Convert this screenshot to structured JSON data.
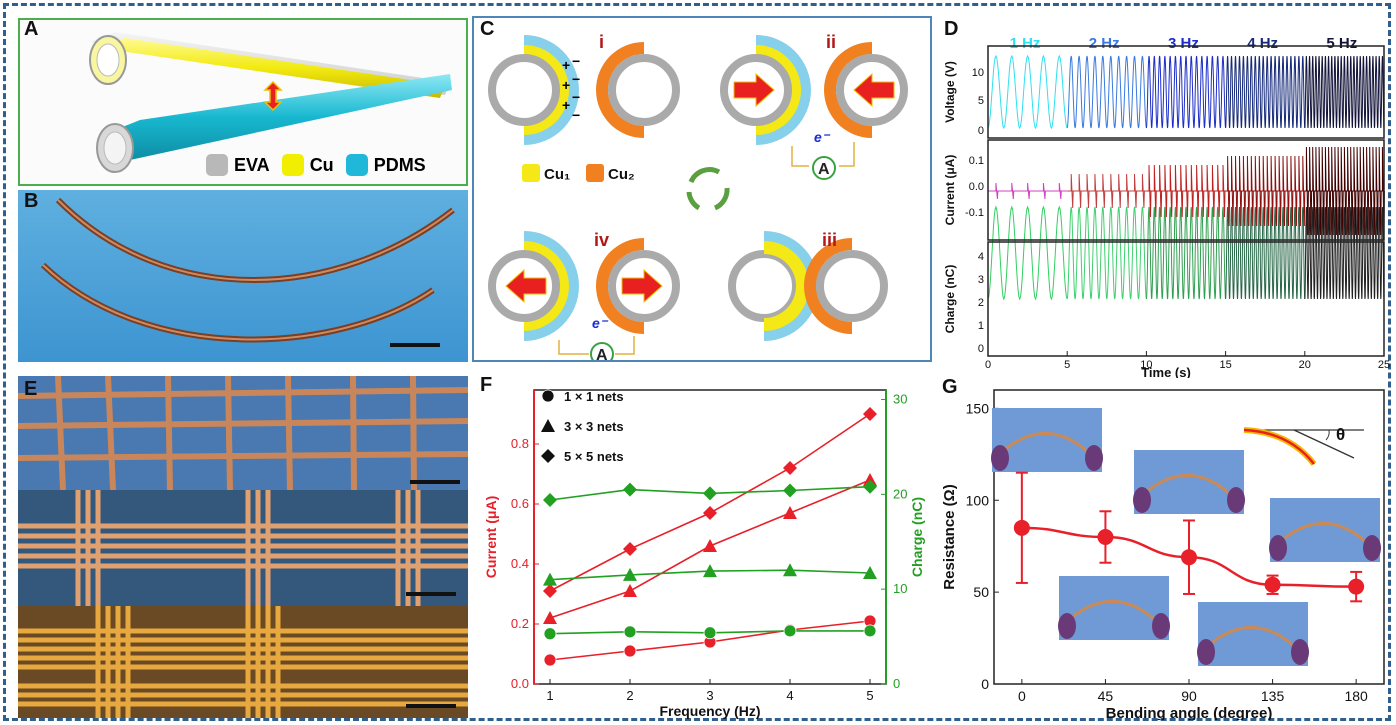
{
  "panels": {
    "A": {
      "label": "A",
      "legend": [
        {
          "name": "EVA",
          "color": "#b8b8b8"
        },
        {
          "name": "Cu",
          "color": "#f2ee00"
        },
        {
          "name": "PDMS",
          "color": "#1fb8d8"
        }
      ]
    },
    "B": {
      "label": "B"
    },
    "C": {
      "label": "C",
      "states": [
        "i",
        "ii",
        "iii",
        "iv"
      ],
      "legend": [
        "Cu₁",
        "Cu₂"
      ],
      "ammeter": "A",
      "electron": "e⁻"
    },
    "D": {
      "label": "D",
      "frequencies": [
        "1 Hz",
        "2 Hz",
        "3 Hz",
        "4 Hz",
        "5 Hz"
      ],
      "freq_colors": [
        "#30e0f0",
        "#3a7ae0",
        "#1d2ec8",
        "#162a7a",
        "#14143a"
      ],
      "ylabels": [
        "Voltage (V)",
        "Current (μA)",
        "Charge (nC)"
      ],
      "xlabel": "Time (s)",
      "voltage_ticks": [
        "10",
        "5",
        "0"
      ],
      "current_ticks": [
        "0.1",
        "0.0",
        "-0.1"
      ],
      "charge_ticks": [
        "4",
        "3",
        "2",
        "1",
        "0"
      ],
      "time_ticks": [
        "0",
        "5",
        "10",
        "15",
        "20",
        "25"
      ]
    },
    "E": {
      "label": "E"
    },
    "F": {
      "label": "F"
    },
    "G": {
      "label": "G"
    }
  },
  "chart_data": [
    {
      "type": "line",
      "panel": "F",
      "xlabel": "Frequency (Hz)",
      "ylabel": "Current (μA)",
      "y2label": "Charge (nC)",
      "x": [
        1,
        2,
        3,
        4,
        5
      ],
      "xticks": [
        "1",
        "2",
        "3",
        "4",
        "5"
      ],
      "yticks": [
        "0.0",
        "0.2",
        "0.4",
        "0.6",
        "0.8"
      ],
      "y2ticks": [
        "0",
        "10",
        "20",
        "30"
      ],
      "ylim": [
        0,
        0.98
      ],
      "y2lim": [
        0,
        31
      ],
      "legend": [
        {
          "marker": "circle",
          "label": "1 × 1 nets"
        },
        {
          "marker": "triangle",
          "label": "3 × 3 nets"
        },
        {
          "marker": "diamond",
          "label": "5 × 5 nets"
        }
      ],
      "series": [
        {
          "name": "1 × 1 nets",
          "axis": "left",
          "marker": "circle",
          "color": "#e8202a",
          "values": [
            0.08,
            0.11,
            0.14,
            0.18,
            0.21
          ]
        },
        {
          "name": "3 × 3 nets",
          "axis": "left",
          "marker": "triangle",
          "color": "#e8202a",
          "values": [
            0.22,
            0.31,
            0.46,
            0.57,
            0.68
          ]
        },
        {
          "name": "5 × 5 nets",
          "axis": "left",
          "marker": "diamond",
          "color": "#e8202a",
          "values": [
            0.31,
            0.45,
            0.57,
            0.72,
            0.9
          ]
        },
        {
          "name": "1 × 1 nets",
          "axis": "right",
          "marker": "circle",
          "color": "#22a022",
          "values": [
            5.3,
            5.5,
            5.4,
            5.6,
            5.6
          ]
        },
        {
          "name": "3 × 3 nets",
          "axis": "right",
          "marker": "triangle",
          "color": "#22a022",
          "values": [
            11.0,
            11.5,
            11.9,
            12.0,
            11.7
          ]
        },
        {
          "name": "5 × 5 nets",
          "axis": "right",
          "marker": "diamond",
          "color": "#22a022",
          "values": [
            19.4,
            20.5,
            20.1,
            20.4,
            20.8
          ]
        }
      ]
    },
    {
      "type": "scatter",
      "panel": "G",
      "xlabel": "Bending angle (degree)",
      "ylabel": "Resistance (Ω)",
      "x": [
        0,
        45,
        90,
        135,
        180
      ],
      "xticks": [
        "0",
        "45",
        "90",
        "135",
        "180"
      ],
      "yticks": [
        "0",
        "50",
        "100",
        "150"
      ],
      "ylim": [
        0,
        160
      ],
      "xlim": [
        -15,
        195
      ],
      "series": [
        {
          "name": "",
          "color": "#e8202a",
          "values": [
            85,
            80,
            69,
            54,
            53
          ],
          "errors": [
            30,
            14,
            20,
            5,
            8
          ]
        }
      ],
      "annotation": "θ"
    }
  ]
}
